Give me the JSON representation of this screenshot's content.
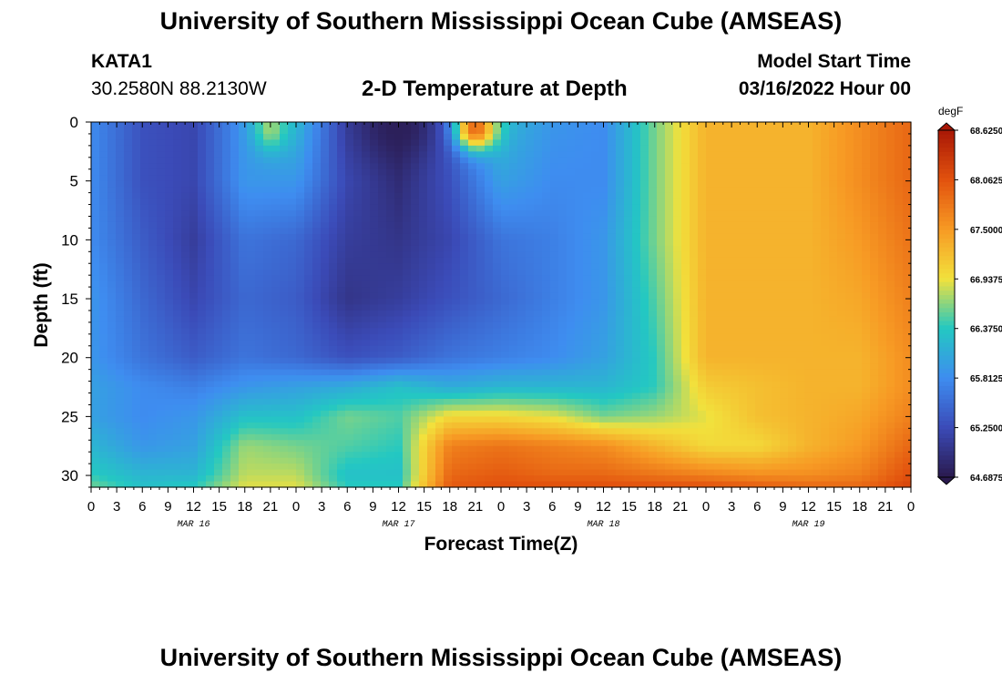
{
  "header": {
    "title": "University of Southern Mississippi Ocean Cube (AMSEAS)",
    "station": "KATA1",
    "coordinates": "30.2580N  88.2130W",
    "subtitle": "2-D Temperature at Depth",
    "start_label": "Model Start Time",
    "start_value": "03/16/2022 Hour 00"
  },
  "footer": {
    "title": "University of Southern Mississippi Ocean Cube (AMSEAS)"
  },
  "chart_data": {
    "type": "heatmap",
    "title": "2-D Temperature at Depth",
    "xlabel": "Forecast Time(Z)",
    "ylabel": "Depth (ft)",
    "units": "degF",
    "x_hours": [
      0,
      6,
      12,
      18,
      24,
      30,
      36,
      42,
      48,
      54,
      60,
      66,
      72,
      78,
      84,
      90,
      96
    ],
    "x_range_hours": [
      0,
      96
    ],
    "y_depths": [
      0,
      5,
      10,
      15,
      20,
      22.5,
      25,
      27.5,
      30,
      31
    ],
    "y_range": [
      0,
      31
    ],
    "x_tick_labels": [
      "0",
      "3",
      "6",
      "9",
      "12",
      "15",
      "18",
      "21",
      "0",
      "3",
      "6",
      "9",
      "12",
      "15",
      "18",
      "21",
      "0",
      "3",
      "6",
      "9",
      "12",
      "15",
      "18",
      "21",
      "0",
      "3",
      "6",
      "9",
      "12",
      "15",
      "18",
      "21",
      "0"
    ],
    "y_tick_labels": [
      "0",
      "5",
      "10",
      "15",
      "20",
      "25",
      "30"
    ],
    "date_labels": [
      {
        "hour": 12,
        "label": "MAR 16"
      },
      {
        "hour": 36,
        "label": "MAR 17"
      },
      {
        "hour": 60,
        "label": "MAR 18"
      },
      {
        "hour": 84,
        "label": "MAR 19"
      }
    ],
    "values": [
      [
        65.8,
        65.3,
        65.2,
        65.9,
        66.2,
        65.1,
        64.8,
        65.4,
        66.2,
        65.9,
        65.8,
        66.6,
        67.3,
        67.3,
        67.3,
        67.6,
        67.9
      ],
      [
        65.8,
        65.3,
        65.2,
        65.9,
        65.9,
        65.2,
        64.9,
        65.3,
        66.0,
        65.8,
        65.8,
        66.6,
        67.3,
        67.3,
        67.3,
        67.6,
        67.9
      ],
      [
        65.8,
        65.4,
        65.1,
        65.6,
        65.5,
        65.1,
        65.0,
        65.2,
        65.6,
        65.7,
        65.9,
        66.6,
        67.3,
        67.3,
        67.3,
        67.5,
        67.8
      ],
      [
        65.9,
        65.5,
        65.2,
        65.5,
        65.4,
        65.0,
        65.1,
        65.3,
        65.5,
        65.7,
        65.9,
        66.5,
        67.3,
        67.3,
        67.3,
        67.4,
        67.7
      ],
      [
        65.9,
        65.6,
        65.4,
        65.6,
        65.5,
        65.3,
        65.4,
        65.6,
        65.7,
        65.8,
        66.0,
        66.4,
        67.3,
        67.3,
        67.3,
        67.3,
        67.6
      ],
      [
        66.0,
        65.8,
        65.7,
        65.9,
        66.0,
        66.1,
        66.3,
        66.1,
        66.2,
        66.2,
        66.2,
        66.4,
        67.1,
        67.2,
        67.3,
        67.3,
        67.6
      ],
      [
        66.0,
        65.8,
        65.9,
        66.3,
        66.3,
        66.6,
        66.5,
        67.0,
        67.0,
        66.9,
        66.6,
        66.7,
        66.9,
        67.2,
        67.3,
        67.4,
        67.7
      ],
      [
        66.2,
        65.9,
        66.0,
        66.7,
        66.6,
        66.5,
        66.4,
        67.7,
        67.8,
        67.7,
        67.6,
        67.3,
        67.0,
        67.0,
        67.3,
        67.5,
        67.9
      ],
      [
        66.4,
        66.2,
        66.2,
        66.8,
        66.8,
        66.3,
        66.3,
        67.9,
        68.0,
        67.9,
        67.9,
        67.8,
        67.7,
        67.6,
        67.6,
        67.7,
        68.1
      ],
      [
        66.6,
        66.3,
        66.4,
        66.9,
        66.9,
        66.4,
        66.4,
        68.0,
        68.1,
        68.1,
        68.1,
        68.1,
        68.1,
        68.0,
        67.9,
        67.9,
        68.2
      ]
    ],
    "extras": [
      {
        "hour": 21,
        "depth": 0.5,
        "value": 66.7,
        "radius_hours": 2.5,
        "radius_depth": 2.5
      },
      {
        "hour": 45,
        "depth": 0.5,
        "value": 67.9,
        "radius_hours": 3.0,
        "radius_depth": 2.3
      },
      {
        "hour": 36,
        "depth": 0.4,
        "value": 64.75,
        "radius_hours": 5.0,
        "radius_depth": 3.5
      }
    ],
    "colorbar": {
      "label": "degF",
      "min": 64.6875,
      "max": 68.625,
      "tick_labels": [
        "68.6250",
        "68.0625",
        "67.5000",
        "66.9375",
        "66.3750",
        "65.8125",
        "65.2500",
        "64.6875"
      ],
      "tick_values": [
        68.625,
        68.0625,
        67.5,
        66.9375,
        66.375,
        65.8125,
        65.25,
        64.6875
      ],
      "colors": [
        "#2a1a4e",
        "#3b4bb8",
        "#3e8df0",
        "#23c8c2",
        "#f2e13c",
        "#f79a24",
        "#e2520e",
        "#a81706"
      ]
    }
  }
}
